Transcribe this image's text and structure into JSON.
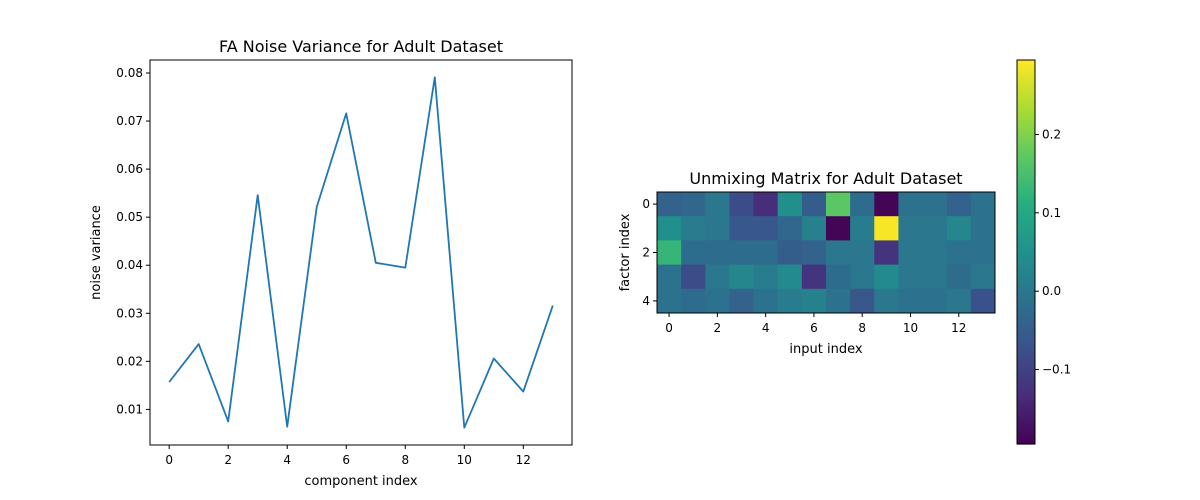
{
  "chart_data": [
    {
      "type": "line",
      "title": "FA Noise Variance for Adult Dataset",
      "xlabel": "component index",
      "ylabel": "noise variance",
      "x": [
        0,
        1,
        2,
        3,
        4,
        5,
        6,
        7,
        8,
        9,
        10,
        11,
        12,
        13
      ],
      "values": [
        0.0157,
        0.0236,
        0.0075,
        0.0546,
        0.0064,
        0.0521,
        0.0716,
        0.0405,
        0.0395,
        0.0791,
        0.0062,
        0.0206,
        0.0137,
        0.0316
      ],
      "xlim": [
        -0.65,
        13.65
      ],
      "ylim": [
        0.0026,
        0.0827
      ],
      "xticks": [
        0,
        2,
        4,
        6,
        8,
        10,
        12
      ],
      "xtick_labels": [
        "0",
        "2",
        "4",
        "6",
        "8",
        "10",
        "12"
      ],
      "yticks": [
        0.01,
        0.02,
        0.03,
        0.04,
        0.05,
        0.06,
        0.07,
        0.08
      ],
      "ytick_labels": [
        "0.01",
        "0.02",
        "0.03",
        "0.04",
        "0.05",
        "0.06",
        "0.07",
        "0.08"
      ],
      "line_color": "#1f77b4",
      "grid": false
    },
    {
      "type": "heatmap",
      "title": "Unmixing Matrix for Adult Dataset",
      "xlabel": "input index",
      "ylabel": "factor index",
      "xticks": [
        0,
        2,
        4,
        6,
        8,
        10,
        12
      ],
      "xtick_labels": [
        "0",
        "2",
        "4",
        "6",
        "8",
        "10",
        "12"
      ],
      "yticks": [
        0,
        2,
        4
      ],
      "ytick_labels": [
        "0",
        "2",
        "4"
      ],
      "colormap": "viridis",
      "vmin": -0.195,
      "vmax": 0.295,
      "matrix": [
        [
          -0.04,
          -0.03,
          0.0,
          -0.08,
          -0.13,
          0.05,
          -0.05,
          0.17,
          -0.02,
          -0.19,
          -0.01,
          -0.01,
          -0.04,
          -0.01
        ],
        [
          0.05,
          0.01,
          0.0,
          -0.06,
          -0.06,
          -0.03,
          0.02,
          -0.19,
          0.01,
          0.29,
          0.0,
          0.0,
          0.03,
          -0.01
        ],
        [
          0.13,
          -0.02,
          -0.02,
          -0.02,
          -0.02,
          -0.05,
          -0.04,
          0.0,
          0.0,
          -0.12,
          0.0,
          0.0,
          -0.01,
          -0.01
        ],
        [
          -0.01,
          -0.08,
          0.0,
          0.03,
          0.01,
          0.04,
          -0.12,
          -0.02,
          0.0,
          0.04,
          0.0,
          0.0,
          -0.02,
          0.0
        ],
        [
          -0.01,
          -0.02,
          -0.01,
          -0.04,
          -0.01,
          0.01,
          0.02,
          -0.01,
          -0.06,
          0.0,
          -0.01,
          -0.01,
          0.0,
          -0.07
        ]
      ],
      "colorbar": {
        "ticks": [
          -0.1,
          0.0,
          0.1,
          0.2
        ],
        "tick_labels": [
          "−0.1",
          "0.0",
          "0.1",
          "0.2"
        ]
      }
    }
  ]
}
